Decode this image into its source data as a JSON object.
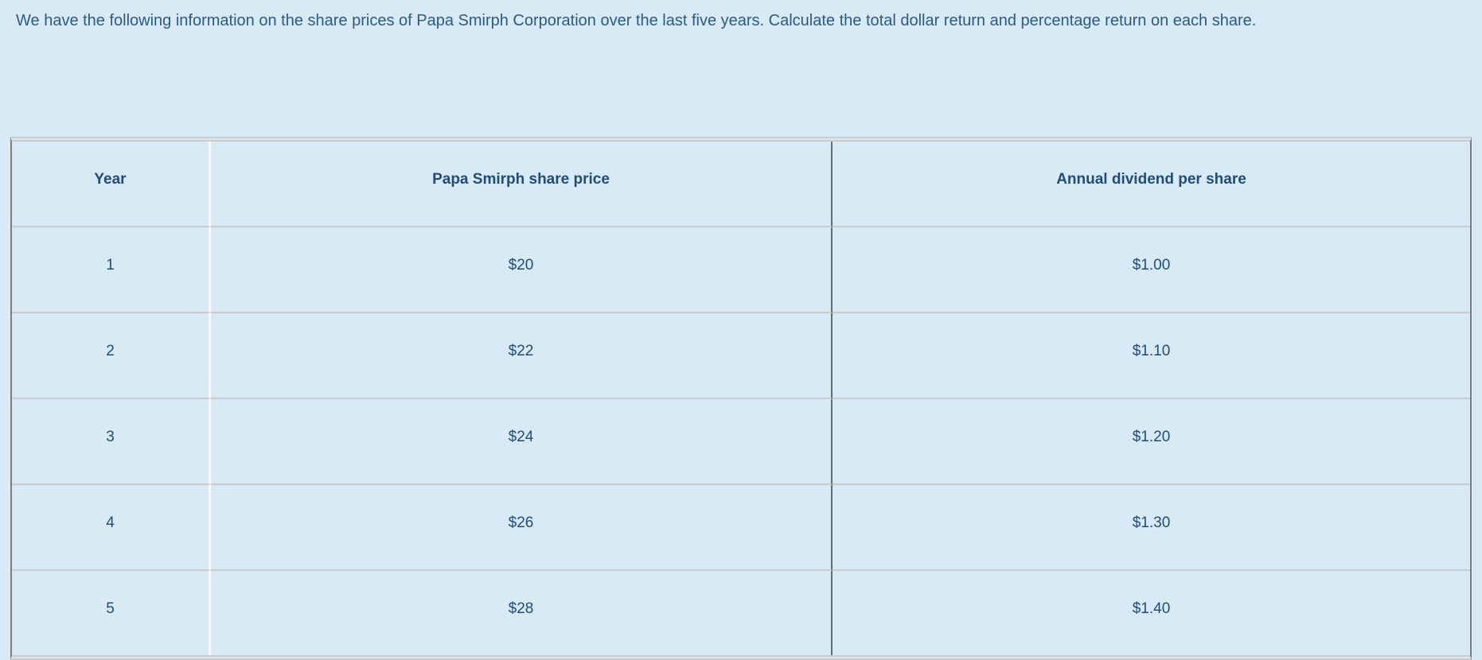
{
  "question": {
    "text": "We have the following information on the share prices of Papa Smirph Corporation over the last five years. Calculate the total dollar return and percentage return on each share."
  },
  "table": {
    "headers": {
      "year": "Year",
      "price": "Papa Smirph share price",
      "dividend": "Annual dividend per share"
    },
    "rows": [
      {
        "year": "1",
        "price": "$20",
        "dividend": "$1.00"
      },
      {
        "year": "2",
        "price": "$22",
        "dividend": "$1.10"
      },
      {
        "year": "3",
        "price": "$24",
        "dividend": "$1.20"
      },
      {
        "year": "4",
        "price": "$26",
        "dividend": "$1.30"
      },
      {
        "year": "5",
        "price": "$28",
        "dividend": "$1.40"
      }
    ]
  },
  "colors": {
    "page_background": "#d8eaf5",
    "question_text": "#2a5a87",
    "table_text": "#1e4d7b",
    "border_light_gray": "#cbcbcb",
    "border_dark_gray": "#7d7d7d",
    "column_divider_white": "#f8fbfd",
    "column_divider_dark": "#666e72"
  }
}
